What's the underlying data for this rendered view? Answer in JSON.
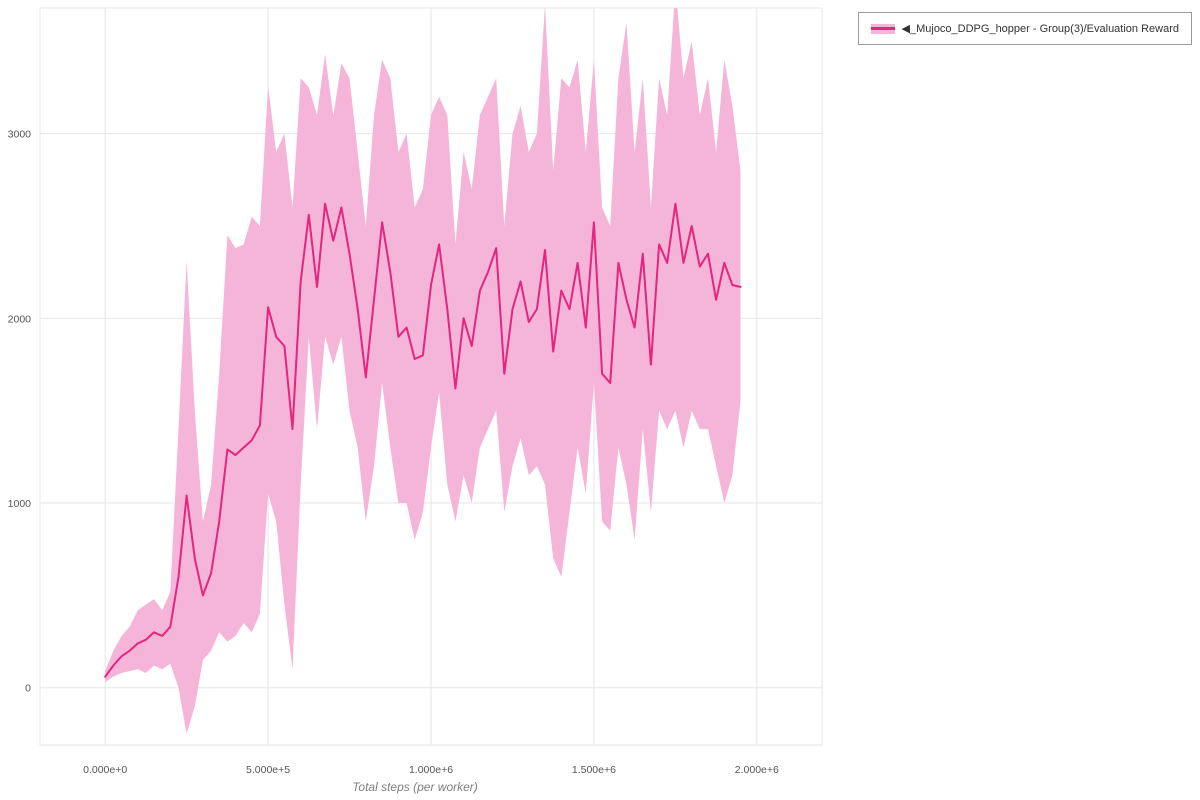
{
  "colors": {
    "line": "#e5257f",
    "band": "#f5b5d8",
    "grid": "#e6e6e6",
    "frame": "#e6e6e6",
    "tick_text": "#555555",
    "axis_title_text": "#7f7f7f",
    "legend_border": "#999999",
    "background": "#ffffff"
  },
  "legend": {
    "label": "◀_Mujoco_DDPG_hopper - Group(3)/Evaluation Reward"
  },
  "axes": {
    "x_tick_labels": [
      "0.000e+0",
      "5.000e+5",
      "1.000e+6",
      "1.500e+6",
      "2.000e+6"
    ],
    "y_tick_labels": [
      "0",
      "1000",
      "2000",
      "3000"
    ]
  },
  "chart_data": {
    "type": "line",
    "title": "",
    "xlabel": "Total steps (per worker)",
    "ylabel": "",
    "legend_position": "top-right",
    "grid": true,
    "series_name": "◀_Mujoco_DDPG_hopper - Group(3)/Evaluation Reward",
    "xlim": [
      -200000,
      2200000
    ],
    "ylim": [
      -310,
      3680
    ],
    "x_tick_values": [
      0,
      500000,
      1000000,
      1500000,
      2000000
    ],
    "y_tick_values": [
      0,
      1000,
      2000,
      3000
    ],
    "x": [
      0,
      25000,
      50000,
      75000,
      100000,
      125000,
      150000,
      175000,
      200000,
      225000,
      250000,
      275000,
      300000,
      325000,
      350000,
      375000,
      400000,
      425000,
      450000,
      475000,
      500000,
      525000,
      550000,
      575000,
      600000,
      625000,
      650000,
      675000,
      700000,
      725000,
      750000,
      775000,
      800000,
      825000,
      850000,
      875000,
      900000,
      925000,
      950000,
      975000,
      1000000,
      1025000,
      1050000,
      1075000,
      1100000,
      1125000,
      1150000,
      1175000,
      1200000,
      1225000,
      1250000,
      1275000,
      1300000,
      1325000,
      1350000,
      1375000,
      1400000,
      1425000,
      1450000,
      1475000,
      1500000,
      1525000,
      1550000,
      1575000,
      1600000,
      1625000,
      1650000,
      1675000,
      1700000,
      1725000,
      1750000,
      1775000,
      1800000,
      1825000,
      1850000,
      1875000,
      1900000,
      1925000,
      1950000
    ],
    "mean": [
      60,
      120,
      170,
      200,
      240,
      260,
      300,
      280,
      330,
      600,
      1040,
      700,
      500,
      620,
      900,
      1290,
      1260,
      1300,
      1340,
      1420,
      2060,
      1900,
      1850,
      1400,
      2200,
      2560,
      2170,
      2620,
      2420,
      2600,
      2350,
      2050,
      1680,
      2100,
      2520,
      2250,
      1900,
      1950,
      1780,
      1800,
      2180,
      2400,
      2050,
      1620,
      2000,
      1850,
      2150,
      2250,
      2380,
      1700,
      2050,
      2200,
      1980,
      2050,
      2370,
      1820,
      2150,
      2050,
      2300,
      1950,
      2520,
      1700,
      1650,
      2300,
      2100,
      1950,
      2350,
      1750,
      2400,
      2300,
      2620,
      2300,
      2500,
      2280,
      2350,
      2100,
      2300,
      2180,
      2170
    ],
    "upper": [
      90,
      200,
      280,
      330,
      420,
      450,
      480,
      420,
      520,
      1400,
      2310,
      1500,
      900,
      1100,
      1700,
      2450,
      2380,
      2400,
      2550,
      2500,
      3260,
      2900,
      3000,
      2600,
      3300,
      3250,
      3100,
      3430,
      3100,
      3380,
      3300,
      2900,
      2500,
      3100,
      3400,
      3300,
      2900,
      3000,
      2600,
      2700,
      3100,
      3200,
      3100,
      2400,
      2900,
      2700,
      3100,
      3200,
      3300,
      2500,
      3000,
      3150,
      2900,
      3000,
      3700,
      2800,
      3300,
      3250,
      3400,
      2900,
      3400,
      2600,
      2500,
      3300,
      3600,
      2900,
      3300,
      2600,
      3300,
      3100,
      3800,
      3300,
      3500,
      3100,
      3300,
      2900,
      3400,
      3150,
      2800
    ],
    "lower": [
      30,
      60,
      80,
      90,
      100,
      80,
      120,
      100,
      130,
      0,
      -250,
      -100,
      150,
      200,
      300,
      250,
      280,
      350,
      300,
      400,
      1050,
      900,
      450,
      100,
      1100,
      1900,
      1400,
      1900,
      1750,
      1900,
      1500,
      1300,
      900,
      1200,
      1650,
      1300,
      1000,
      1000,
      800,
      950,
      1300,
      1600,
      1100,
      900,
      1150,
      1000,
      1300,
      1400,
      1500,
      950,
      1200,
      1350,
      1150,
      1200,
      1100,
      700,
      600,
      950,
      1300,
      1050,
      1650,
      900,
      850,
      1300,
      1100,
      800,
      1400,
      950,
      1500,
      1400,
      1500,
      1300,
      1500,
      1400,
      1400,
      1200,
      1000,
      1150,
      1550
    ]
  }
}
